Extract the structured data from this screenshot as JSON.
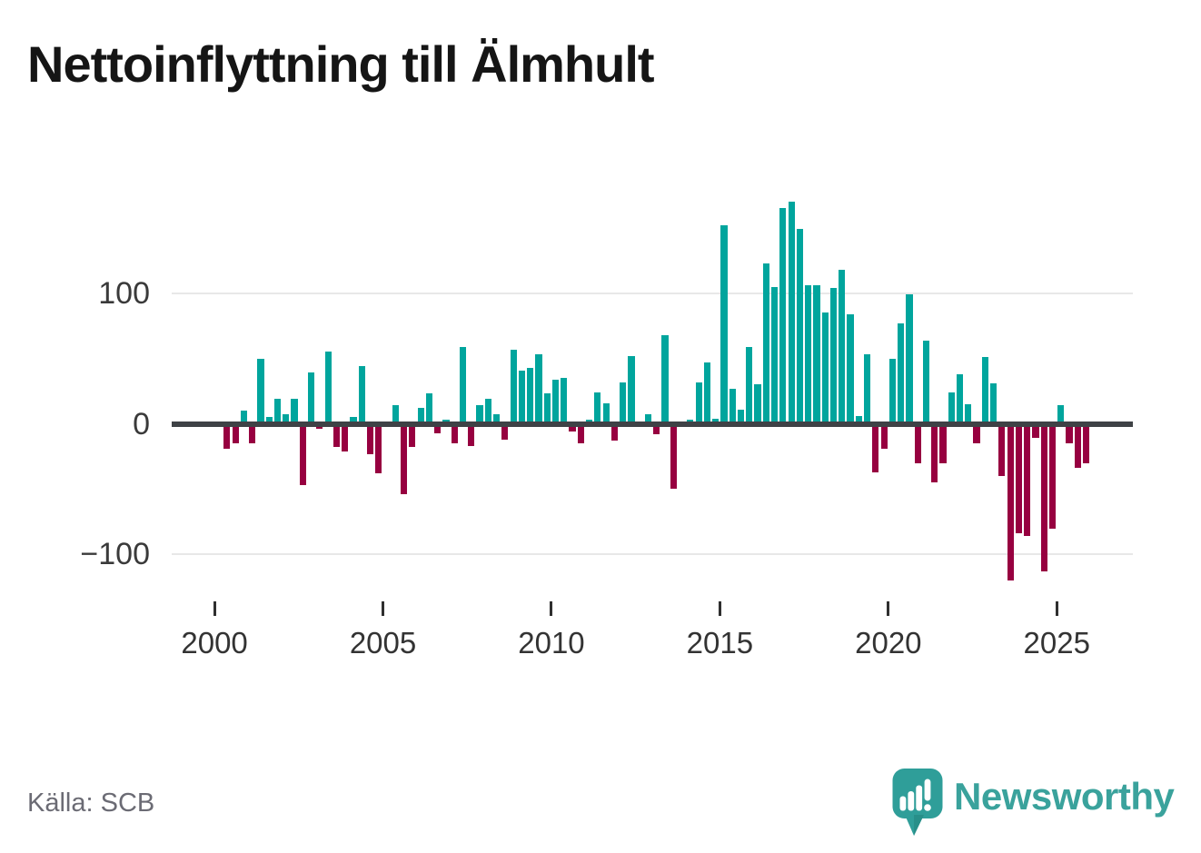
{
  "title": "Nettoinflyttning till Älmhult",
  "source": "Källa: SCB",
  "branding": {
    "logo_text": "Newsworthy",
    "logo_icon": "speech-bubble-bar-chart",
    "logo_color": "#2f9e99",
    "logo_tail_color": "#288f89",
    "wordmark_color": "#3aa29c"
  },
  "chart_data": {
    "type": "bar",
    "title": "Nettoinflyttning till Älmhult",
    "xlabel": "",
    "ylabel": "",
    "grid": "horizontal",
    "legend": "none",
    "ylim": [
      -140,
      185
    ],
    "yticks": [
      100,
      0,
      -100
    ],
    "ytick_labels": [
      "100",
      "0",
      "−100"
    ],
    "xtick_years": [
      2000,
      2005,
      2010,
      2015,
      2020,
      2025
    ],
    "xtick_labels": [
      "2000",
      "2005",
      "2010",
      "2015",
      "2020",
      "2025"
    ],
    "positive_color": "#00a59d",
    "negative_color": "#970040",
    "x": [
      "2000 Q2",
      "2000 Q3",
      "2000 Q4",
      "2001 Q1",
      "2001 Q2",
      "2001 Q3",
      "2001 Q4",
      "2002 Q1",
      "2002 Q2",
      "2002 Q3",
      "2002 Q4",
      "2003 Q1",
      "2003 Q2",
      "2003 Q3",
      "2003 Q4",
      "2004 Q1",
      "2004 Q2",
      "2004 Q3",
      "2004 Q4",
      "2005 Q1",
      "2005 Q2",
      "2005 Q3",
      "2005 Q4",
      "2006 Q1",
      "2006 Q2",
      "2006 Q3",
      "2006 Q4",
      "2007 Q1",
      "2007 Q2",
      "2007 Q3",
      "2007 Q4",
      "2008 Q1",
      "2008 Q2",
      "2008 Q3",
      "2008 Q4",
      "2009 Q1",
      "2009 Q2",
      "2009 Q3",
      "2009 Q4",
      "2010 Q1",
      "2010 Q2",
      "2010 Q3",
      "2010 Q4",
      "2011 Q1",
      "2011 Q2",
      "2011 Q3",
      "2011 Q4",
      "2012 Q1",
      "2012 Q2",
      "2012 Q3",
      "2012 Q4",
      "2013 Q1",
      "2013 Q2",
      "2013 Q3",
      "2013 Q4",
      "2014 Q1",
      "2014 Q2",
      "2014 Q3",
      "2014 Q4",
      "2015 Q1",
      "2015 Q2",
      "2015 Q3",
      "2015 Q4",
      "2016 Q1",
      "2016 Q2",
      "2016 Q3",
      "2016 Q4",
      "2017 Q1",
      "2017 Q2",
      "2017 Q3",
      "2017 Q4",
      "2018 Q1",
      "2018 Q2",
      "2018 Q3",
      "2018 Q4",
      "2019 Q1",
      "2019 Q2",
      "2019 Q3",
      "2019 Q4",
      "2020 Q1",
      "2020 Q2",
      "2020 Q3",
      "2020 Q4",
      "2021 Q1",
      "2021 Q2",
      "2021 Q3",
      "2021 Q4",
      "2022 Q1",
      "2022 Q2",
      "2022 Q3",
      "2022 Q4",
      "2023 Q1",
      "2023 Q2",
      "2023 Q3",
      "2023 Q4",
      "2024 Q1",
      "2024 Q2",
      "2024 Q3",
      "2024 Q4",
      "2025 Q1",
      "2025 Q2",
      "2025 Q3",
      "2025 Q4"
    ],
    "values": [
      -19,
      -15,
      10,
      -15,
      50,
      5,
      19,
      7,
      19,
      -47,
      39,
      -4,
      55,
      -18,
      -21,
      5,
      44,
      -23,
      -38,
      -2,
      14,
      -54,
      -18,
      12,
      23,
      -7,
      3,
      -15,
      59,
      -17,
      14,
      19,
      7,
      -12,
      57,
      41,
      43,
      53,
      23,
      34,
      35,
      -6,
      -15,
      3,
      24,
      16,
      -13,
      32,
      52,
      0,
      7,
      -8,
      68,
      -50,
      -2,
      3,
      32,
      47,
      4,
      152,
      27,
      11,
      59,
      30,
      123,
      105,
      165,
      170,
      149,
      106,
      106,
      85,
      104,
      118,
      84,
      6,
      53,
      -37,
      -19,
      50,
      77,
      99,
      -30,
      64,
      -45,
      -30,
      24,
      38,
      15,
      -15,
      51,
      31,
      -40,
      -120,
      -84,
      -86,
      -11,
      -113,
      -80,
      14,
      -15,
      -34,
      -30
    ]
  }
}
